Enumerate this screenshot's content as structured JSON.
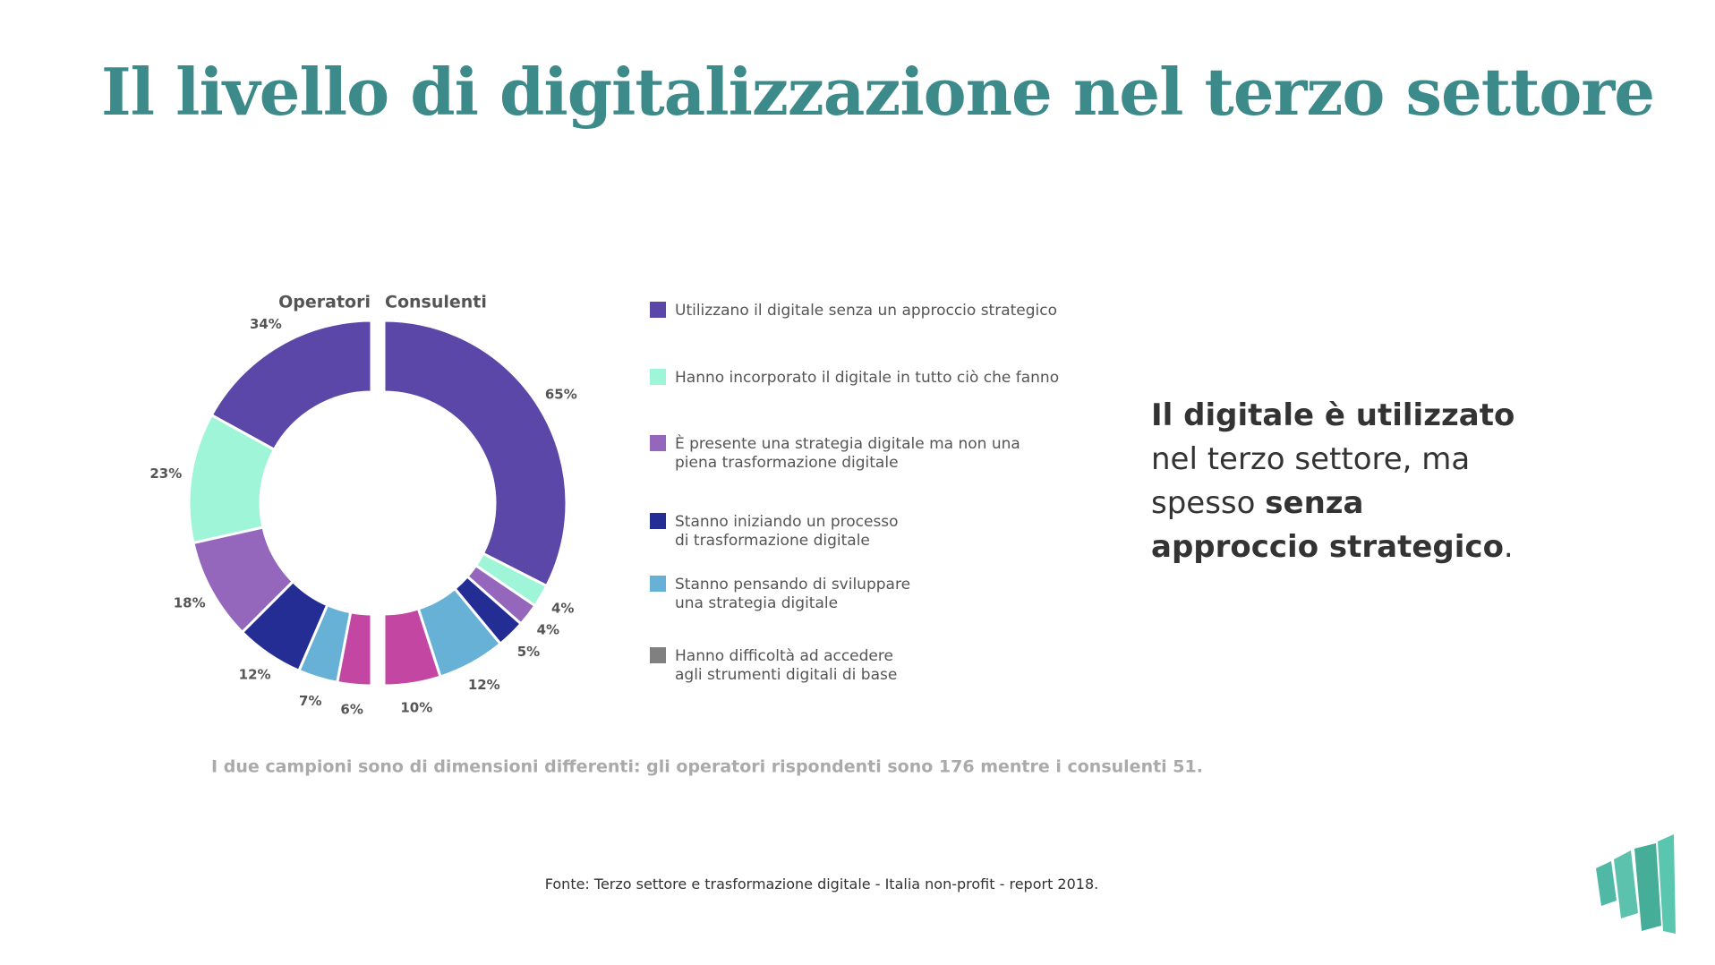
{
  "title": "Il livello di digitalizzazione nel terzo settore",
  "chart_data": {
    "type": "split-donut",
    "categories": [
      "Utilizzano il digitale senza un approccio strategico",
      "Hanno incorporato il digitale in tutto ciò che fanno",
      "È presente una strategia digitale ma non una\npiena trasformazione digitale",
      "Stanno iniziando un processo\ndi trasformazione digitale",
      "Stanno pensando di sviluppare\nuna strategia digitale",
      "Hanno difficoltà ad accedere\nagli strumenti digitali di base"
    ],
    "colors": [
      "#5a47a8",
      "#9ef5d8",
      "#9467bd",
      "#242d94",
      "#68b1d6",
      "#c346a3"
    ],
    "legend_colors": [
      "#5a47a8",
      "#9ef5d8",
      "#9467bd",
      "#242d94",
      "#68b1d6",
      "#808080"
    ],
    "series": [
      {
        "name": "Operatori",
        "values": [
          34,
          23,
          18,
          12,
          7,
          6
        ],
        "value_labels": [
          "34%",
          "23%",
          "18%",
          "12%",
          "7%",
          "6%"
        ]
      },
      {
        "name": "Consulenti",
        "values": [
          65,
          4,
          4,
          5,
          12,
          10
        ],
        "value_labels": [
          "65%",
          "4%",
          "4%",
          "5%",
          "12%",
          "10%"
        ]
      }
    ],
    "note": "I due campioni sono di dimensioni differenti: gli operatori rispondenti sono 176 mentre i consulenti 51."
  },
  "side_text": [
    {
      "text": "Il digitale è utilizzato",
      "bold": true
    },
    {
      "text": " nel terzo settore, ma spesso ",
      "bold": false
    },
    {
      "text": "senza approccio strategico",
      "bold": true
    },
    {
      "text": ".",
      "bold": false
    }
  ],
  "source": "Fonte: Terzo settore e trasformazione digitale - Italia non-profit - report  2018."
}
